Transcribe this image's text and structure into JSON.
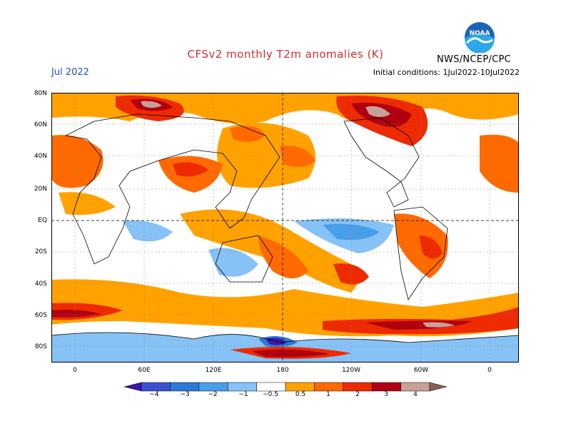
{
  "header": {
    "title": "CFSv2 monthly T2m anomalies (K)",
    "month": "Jul 2022",
    "initial_conditions": "Initial conditions: 1Jul2022-10Jul2022",
    "agency": "NWS/NCEP/CPC",
    "logo_text": "NOAA"
  },
  "map": {
    "lat_labels": [
      "80N",
      "60N",
      "40N",
      "20N",
      "EQ",
      "20S",
      "40S",
      "60S",
      "80S"
    ],
    "lon_labels": [
      "0",
      "60E",
      "120E",
      "180",
      "120W",
      "60W",
      "0"
    ]
  },
  "colorbar": {
    "labels": [
      "−4",
      "−3",
      "−2",
      "−1",
      "−0.5",
      "0.5",
      "1",
      "2",
      "3",
      "4"
    ],
    "colors": [
      "#3a18a8",
      "#3a50d0",
      "#2e78d8",
      "#4a9de8",
      "#86c2f6",
      "#ffffff",
      "#ffa200",
      "#ff6a00",
      "#ee2a00",
      "#b00010",
      "#c8a098",
      "#886058"
    ]
  },
  "colors": {
    "title": "#d03030",
    "month": "#2050c8",
    "warm_1": "#ffa200",
    "warm_2": "#ff6a00",
    "warm_3": "#ee2a00",
    "warm_4": "#b00010",
    "warm_5": "#c8a098",
    "cool_1": "#86c2f6",
    "cool_2": "#4a9de8",
    "cool_3": "#2e78d8"
  }
}
